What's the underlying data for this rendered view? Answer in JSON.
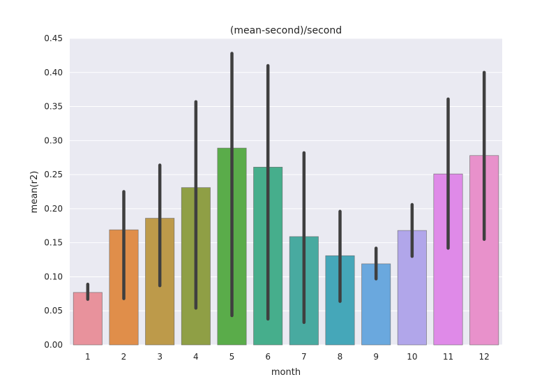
{
  "chart_data": {
    "type": "bar",
    "title": "(mean-second)/second",
    "xlabel": "month",
    "ylabel": "mean(r2)",
    "categories": [
      "1",
      "2",
      "3",
      "4",
      "5",
      "6",
      "7",
      "8",
      "9",
      "10",
      "11",
      "12"
    ],
    "values": [
      0.077,
      0.169,
      0.186,
      0.231,
      0.289,
      0.261,
      0.159,
      0.131,
      0.119,
      0.168,
      0.251,
      0.278
    ],
    "ci_low": [
      0.067,
      0.068,
      0.087,
      0.054,
      0.043,
      0.038,
      0.033,
      0.064,
      0.097,
      0.13,
      0.142,
      0.155
    ],
    "ci_high": [
      0.089,
      0.225,
      0.264,
      0.357,
      0.428,
      0.41,
      0.282,
      0.196,
      0.142,
      0.206,
      0.361,
      0.4
    ],
    "colors": [
      "#e8929c",
      "#e08e4a",
      "#bd9a4a",
      "#8f9f45",
      "#5aac4a",
      "#46ae8c",
      "#48aaa0",
      "#45a7b9",
      "#6aa8de",
      "#b1a6ea",
      "#df8ae8",
      "#e891cb"
    ],
    "ylim": [
      0,
      0.45
    ],
    "yticks": [
      "0.00",
      "0.05",
      "0.10",
      "0.15",
      "0.20",
      "0.25",
      "0.30",
      "0.35",
      "0.40",
      "0.45"
    ],
    "ytick_values": [
      0,
      0.05,
      0.1,
      0.15,
      0.2,
      0.25,
      0.3,
      0.35,
      0.4,
      0.45
    ],
    "grid": true,
    "background_color": "#eaeaf2",
    "errorbar_color": "#3f3f3f"
  }
}
